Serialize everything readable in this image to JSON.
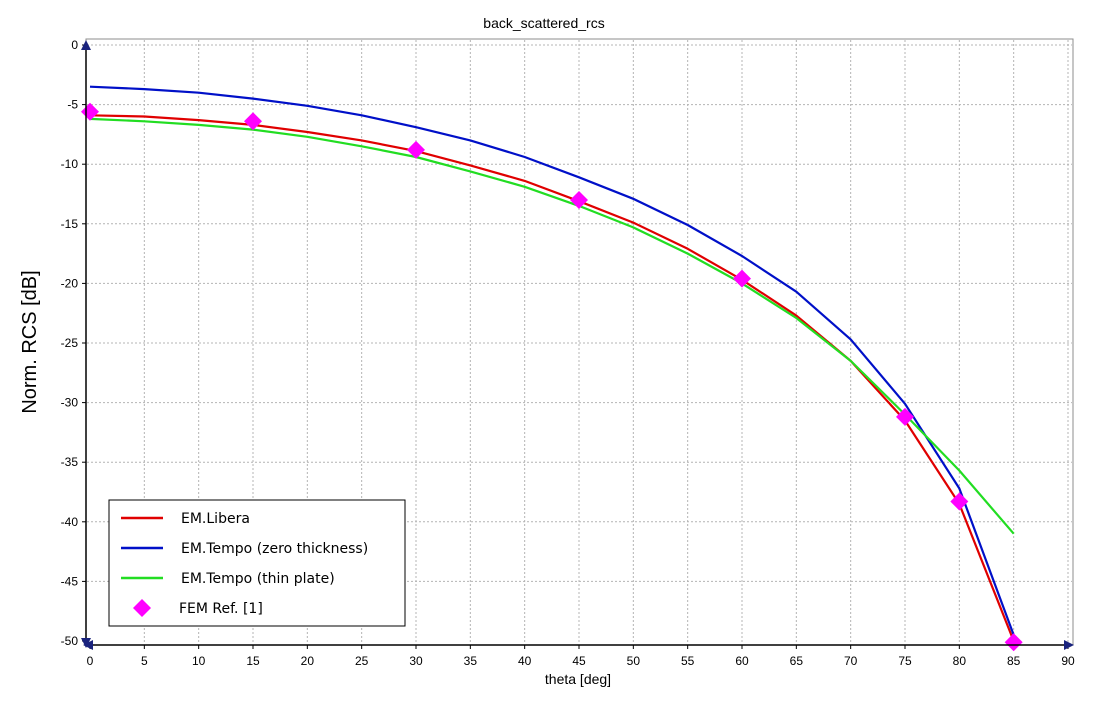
{
  "chart_data": {
    "type": "line",
    "title": "back_scattered_rcs",
    "xlabel": "theta [deg]",
    "ylabel": "Norm. RCS [dB]",
    "xlim": [
      0,
      90
    ],
    "ylim": [
      -50,
      0
    ],
    "x_ticks": [
      0,
      5,
      10,
      15,
      20,
      25,
      30,
      35,
      40,
      45,
      50,
      55,
      60,
      65,
      70,
      75,
      80,
      85,
      90
    ],
    "y_ticks": [
      0,
      -5,
      -10,
      -15,
      -20,
      -25,
      -30,
      -35,
      -40,
      -45,
      -50
    ],
    "grid": true,
    "legend_position": "bottom-left",
    "series": [
      {
        "name": "EM.Libera",
        "color": "#e00000",
        "style": "line",
        "x": [
          0,
          5,
          10,
          15,
          20,
          25,
          30,
          35,
          40,
          45,
          50,
          55,
          60,
          65,
          70,
          75,
          80,
          85
        ],
        "y": [
          -5.9,
          -6.0,
          -6.3,
          -6.7,
          -7.3,
          -8.0,
          -8.9,
          -10.1,
          -11.4,
          -13.1,
          -14.9,
          -17.1,
          -19.7,
          -22.7,
          -26.5,
          -31.5,
          -38.5,
          -50.0
        ]
      },
      {
        "name": "EM.Tempo (zero thickness)",
        "color": "#0010c8",
        "style": "line",
        "x": [
          0,
          5,
          10,
          15,
          20,
          25,
          30,
          35,
          40,
          45,
          50,
          55,
          60,
          65,
          70,
          75,
          80,
          85
        ],
        "y": [
          -3.5,
          -3.7,
          -4.0,
          -4.5,
          -5.1,
          -5.9,
          -6.9,
          -8.0,
          -9.4,
          -11.1,
          -12.9,
          -15.1,
          -17.7,
          -20.7,
          -24.7,
          -30.1,
          -37.2,
          -49.5
        ]
      },
      {
        "name": "EM.Tempo (thin plate)",
        "color": "#22dd22",
        "style": "line",
        "x": [
          0,
          5,
          10,
          15,
          20,
          25,
          30,
          35,
          40,
          45,
          50,
          55,
          60,
          65,
          70,
          75,
          80,
          85
        ],
        "y": [
          -6.2,
          -6.4,
          -6.7,
          -7.1,
          -7.7,
          -8.5,
          -9.4,
          -10.6,
          -11.9,
          -13.5,
          -15.3,
          -17.5,
          -20.0,
          -22.9,
          -26.5,
          -31.0,
          -35.7,
          -41.0
        ]
      },
      {
        "name": "FEM Ref. [1]",
        "color": "#ff00ff",
        "style": "marker",
        "marker": "diamond",
        "x": [
          0,
          15,
          30,
          45,
          60,
          75,
          80,
          85
        ],
        "y": [
          -5.6,
          -6.4,
          -8.8,
          -13.0,
          -19.6,
          -31.2,
          -38.3,
          -50.1
        ]
      }
    ]
  }
}
